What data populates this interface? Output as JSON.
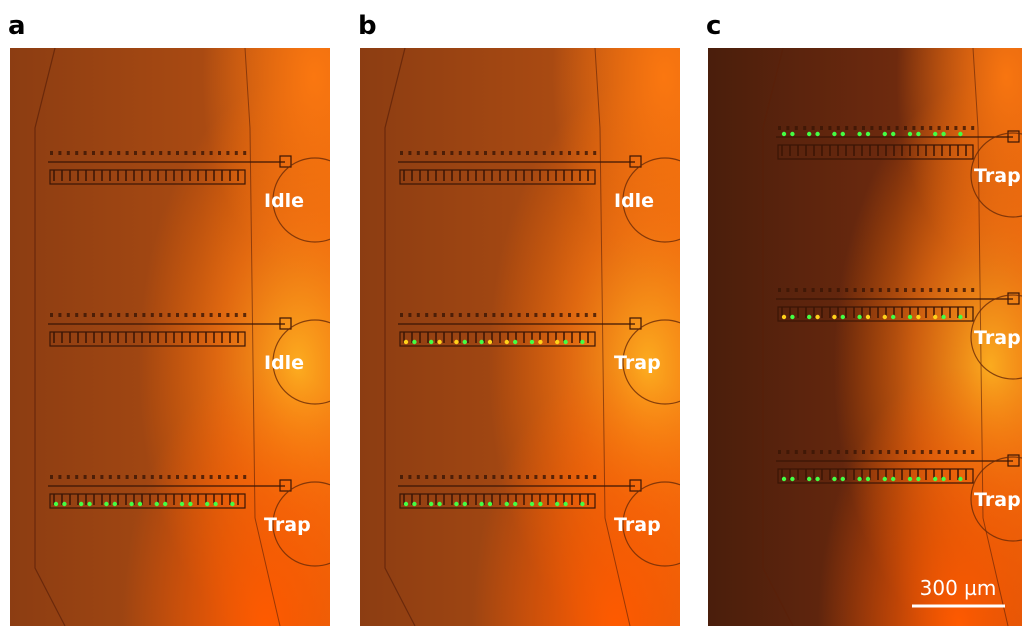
{
  "panels": [
    {
      "label": "a",
      "chambers": [
        "Idle",
        "Idle",
        "Trap"
      ]
    },
    {
      "label": "b",
      "chambers": [
        "Idle",
        "Trap",
        "Trap"
      ]
    },
    {
      "label": "c",
      "chambers": [
        "Trap",
        "Trap",
        "Trap"
      ]
    }
  ],
  "scale_bar": "300 µm"
}
